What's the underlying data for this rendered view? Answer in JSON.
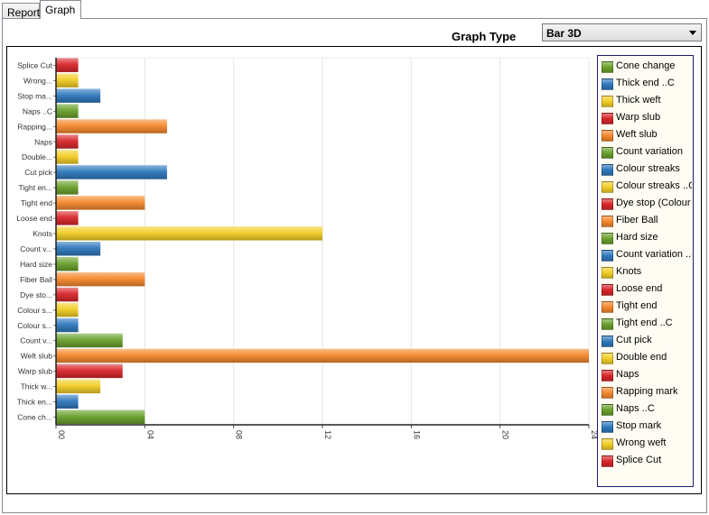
{
  "tabs": [
    {
      "label": "Report",
      "active": false
    },
    {
      "label": "Graph",
      "active": true
    }
  ],
  "graph_type": {
    "label": "Graph Type",
    "selected": "Bar 3D"
  },
  "colors": {
    "green": "#6aa12c",
    "blue": "#2f78bd",
    "yellow": "#f2ce25",
    "red": "#d9262a",
    "orange": "#f5882c"
  },
  "chart_data": {
    "type": "bar",
    "orientation": "horizontal",
    "categories": [
      "Splice Cut",
      "Wrong...",
      "Stop ma...",
      "Naps ..C",
      "Rapping...",
      "Naps",
      "Double...",
      "Cut pick",
      "Tight en...",
      "Tight end",
      "Loose end",
      "Knots",
      "Count v...",
      "Hard size",
      "Fiber Ball",
      "Dye sto...",
      "Colour s...",
      "Colour s...",
      "Count v...",
      "Weft slub",
      "Warp slub",
      "Thick w...",
      "Thick en...",
      "Cone ch..."
    ],
    "values": [
      1,
      1,
      2,
      1,
      5,
      1,
      1,
      5,
      1,
      4,
      1,
      12,
      2,
      1,
      4,
      1,
      1,
      1,
      3,
      24,
      3,
      2,
      1,
      4
    ],
    "bar_colors": [
      "red",
      "yellow",
      "blue",
      "green",
      "orange",
      "red",
      "yellow",
      "blue",
      "green",
      "orange",
      "red",
      "yellow",
      "blue",
      "green",
      "orange",
      "red",
      "yellow",
      "blue",
      "green",
      "orange",
      "red",
      "yellow",
      "blue",
      "green"
    ],
    "x_ticks": [
      "00",
      "04",
      "08",
      "12",
      "16",
      "20",
      "24"
    ],
    "xlim": [
      0,
      24
    ],
    "grid": true,
    "legend": [
      {
        "label": "Cone change",
        "color": "green"
      },
      {
        "label": "Thick end ..C",
        "color": "blue"
      },
      {
        "label": "Thick weft",
        "color": "yellow"
      },
      {
        "label": "Warp slub",
        "color": "red"
      },
      {
        "label": "Weft slub",
        "color": "orange"
      },
      {
        "label": "Count variation",
        "color": "green"
      },
      {
        "label": "Colour streaks",
        "color": "blue"
      },
      {
        "label": "Colour streaks ..C",
        "color": "yellow"
      },
      {
        "label": "Dye stop (Colour",
        "color": "red"
      },
      {
        "label": "Fiber Ball",
        "color": "orange"
      },
      {
        "label": "Hard size",
        "color": "green"
      },
      {
        "label": "Count variation ..(",
        "color": "blue"
      },
      {
        "label": "Knots",
        "color": "yellow"
      },
      {
        "label": "Loose end",
        "color": "red"
      },
      {
        "label": "Tight end",
        "color": "orange"
      },
      {
        "label": "Tight end ..C",
        "color": "green"
      },
      {
        "label": "Cut pick",
        "color": "blue"
      },
      {
        "label": "Double end",
        "color": "yellow"
      },
      {
        "label": "Naps",
        "color": "red"
      },
      {
        "label": "Rapping mark",
        "color": "orange"
      },
      {
        "label": "Naps ..C",
        "color": "green"
      },
      {
        "label": "Stop mark",
        "color": "blue"
      },
      {
        "label": "Wrong weft",
        "color": "yellow"
      },
      {
        "label": "Splice Cut",
        "color": "red"
      }
    ],
    "legend_position": "right"
  }
}
